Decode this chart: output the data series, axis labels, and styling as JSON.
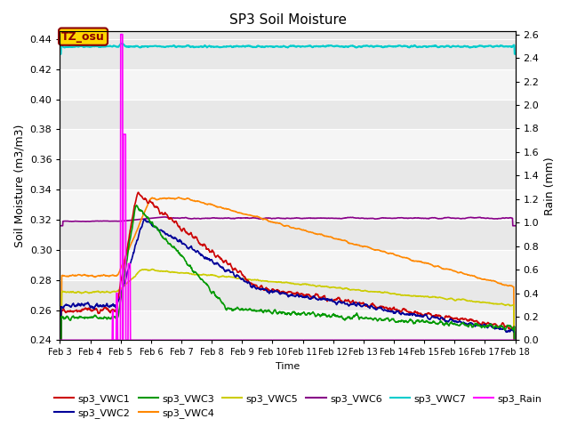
{
  "title": "SP3 Soil Moisture",
  "xlabel": "Time",
  "ylabel_left": "Soil Moisture (m3/m3)",
  "ylabel_right": "Rain (mm)",
  "annotation_text": "TZ_osu",
  "annotation_bbox_facecolor": "#FFD700",
  "annotation_bbox_edgecolor": "#8B0000",
  "ylim_left": [
    0.24,
    0.445
  ],
  "ylim_right": [
    0.0,
    2.625
  ],
  "yticks_left": [
    0.24,
    0.26,
    0.28,
    0.3,
    0.32,
    0.34,
    0.36,
    0.38,
    0.4,
    0.42,
    0.44
  ],
  "yticks_right": [
    0.0,
    0.2,
    0.4,
    0.6,
    0.8,
    1.0,
    1.2,
    1.4,
    1.6,
    1.8,
    2.0,
    2.2,
    2.4,
    2.6
  ],
  "x_tick_labels": [
    "Feb 3",
    "Feb 4",
    "Feb 5",
    "Feb 6",
    "Feb 7",
    "Feb 8",
    "Feb 9",
    "Feb 10",
    "Feb 11",
    "Feb 12",
    "Feb 13",
    "Feb 14",
    "Feb 15",
    "Feb 16",
    "Feb 17",
    "Feb 18"
  ],
  "background_color": "#E8E8E8",
  "background_color2": "#F5F5F5",
  "series": {
    "sp3_VWC1": {
      "color": "#CC0000",
      "lw": 1.2
    },
    "sp3_VWC2": {
      "color": "#000099",
      "lw": 1.2
    },
    "sp3_VWC3": {
      "color": "#009900",
      "lw": 1.2
    },
    "sp3_VWC4": {
      "color": "#FF8800",
      "lw": 1.2
    },
    "sp3_VWC5": {
      "color": "#CCCC00",
      "lw": 1.2
    },
    "sp3_VWC6": {
      "color": "#880088",
      "lw": 1.2
    },
    "sp3_VWC7": {
      "color": "#00CCCC",
      "lw": 1.5
    },
    "sp3_Rain": {
      "color": "#FF00FF",
      "lw": 1.2
    }
  }
}
